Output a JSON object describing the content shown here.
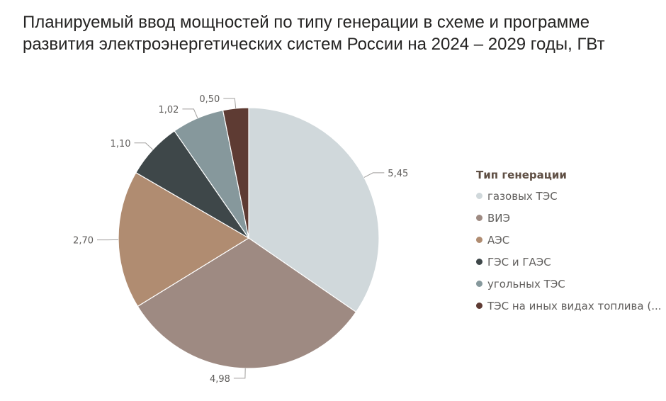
{
  "title_lines": [
    "Планируемый ввод мощностей по типу генерации в схеме и программе",
    "развития электроэнергетических систем России на 2024 – 2029 годы, ГВт"
  ],
  "chart_data": {
    "type": "pie",
    "title": "Планируемый ввод мощностей по типу генерации в схеме и программе развития электроэнергетических систем России на 2024 – 2029 годы, ГВт",
    "legend_title": "Тип генерации",
    "legend_position": "right",
    "start": "top, clockwise",
    "slices": [
      {
        "label": "газовых ТЭС",
        "value": 5.45,
        "value_label": "5,45",
        "color": "#d0d8db"
      },
      {
        "label": "ВИЭ",
        "value": 4.98,
        "value_label": "4,98",
        "color": "#9e8a82"
      },
      {
        "label": "АЭС",
        "value": 2.7,
        "value_label": "2,70",
        "color": "#b08c71"
      },
      {
        "label": "ГЭС и ГАЭС",
        "value": 1.1,
        "value_label": "1,10",
        "color": "#3e4749"
      },
      {
        "label": "угольных ТЭС",
        "value": 1.02,
        "value_label": "1,02",
        "color": "#86989c"
      },
      {
        "label": "ТЭС на иных видах топлива (...",
        "value": 0.5,
        "value_label": "0,50",
        "color": "#5e3b33"
      }
    ]
  }
}
